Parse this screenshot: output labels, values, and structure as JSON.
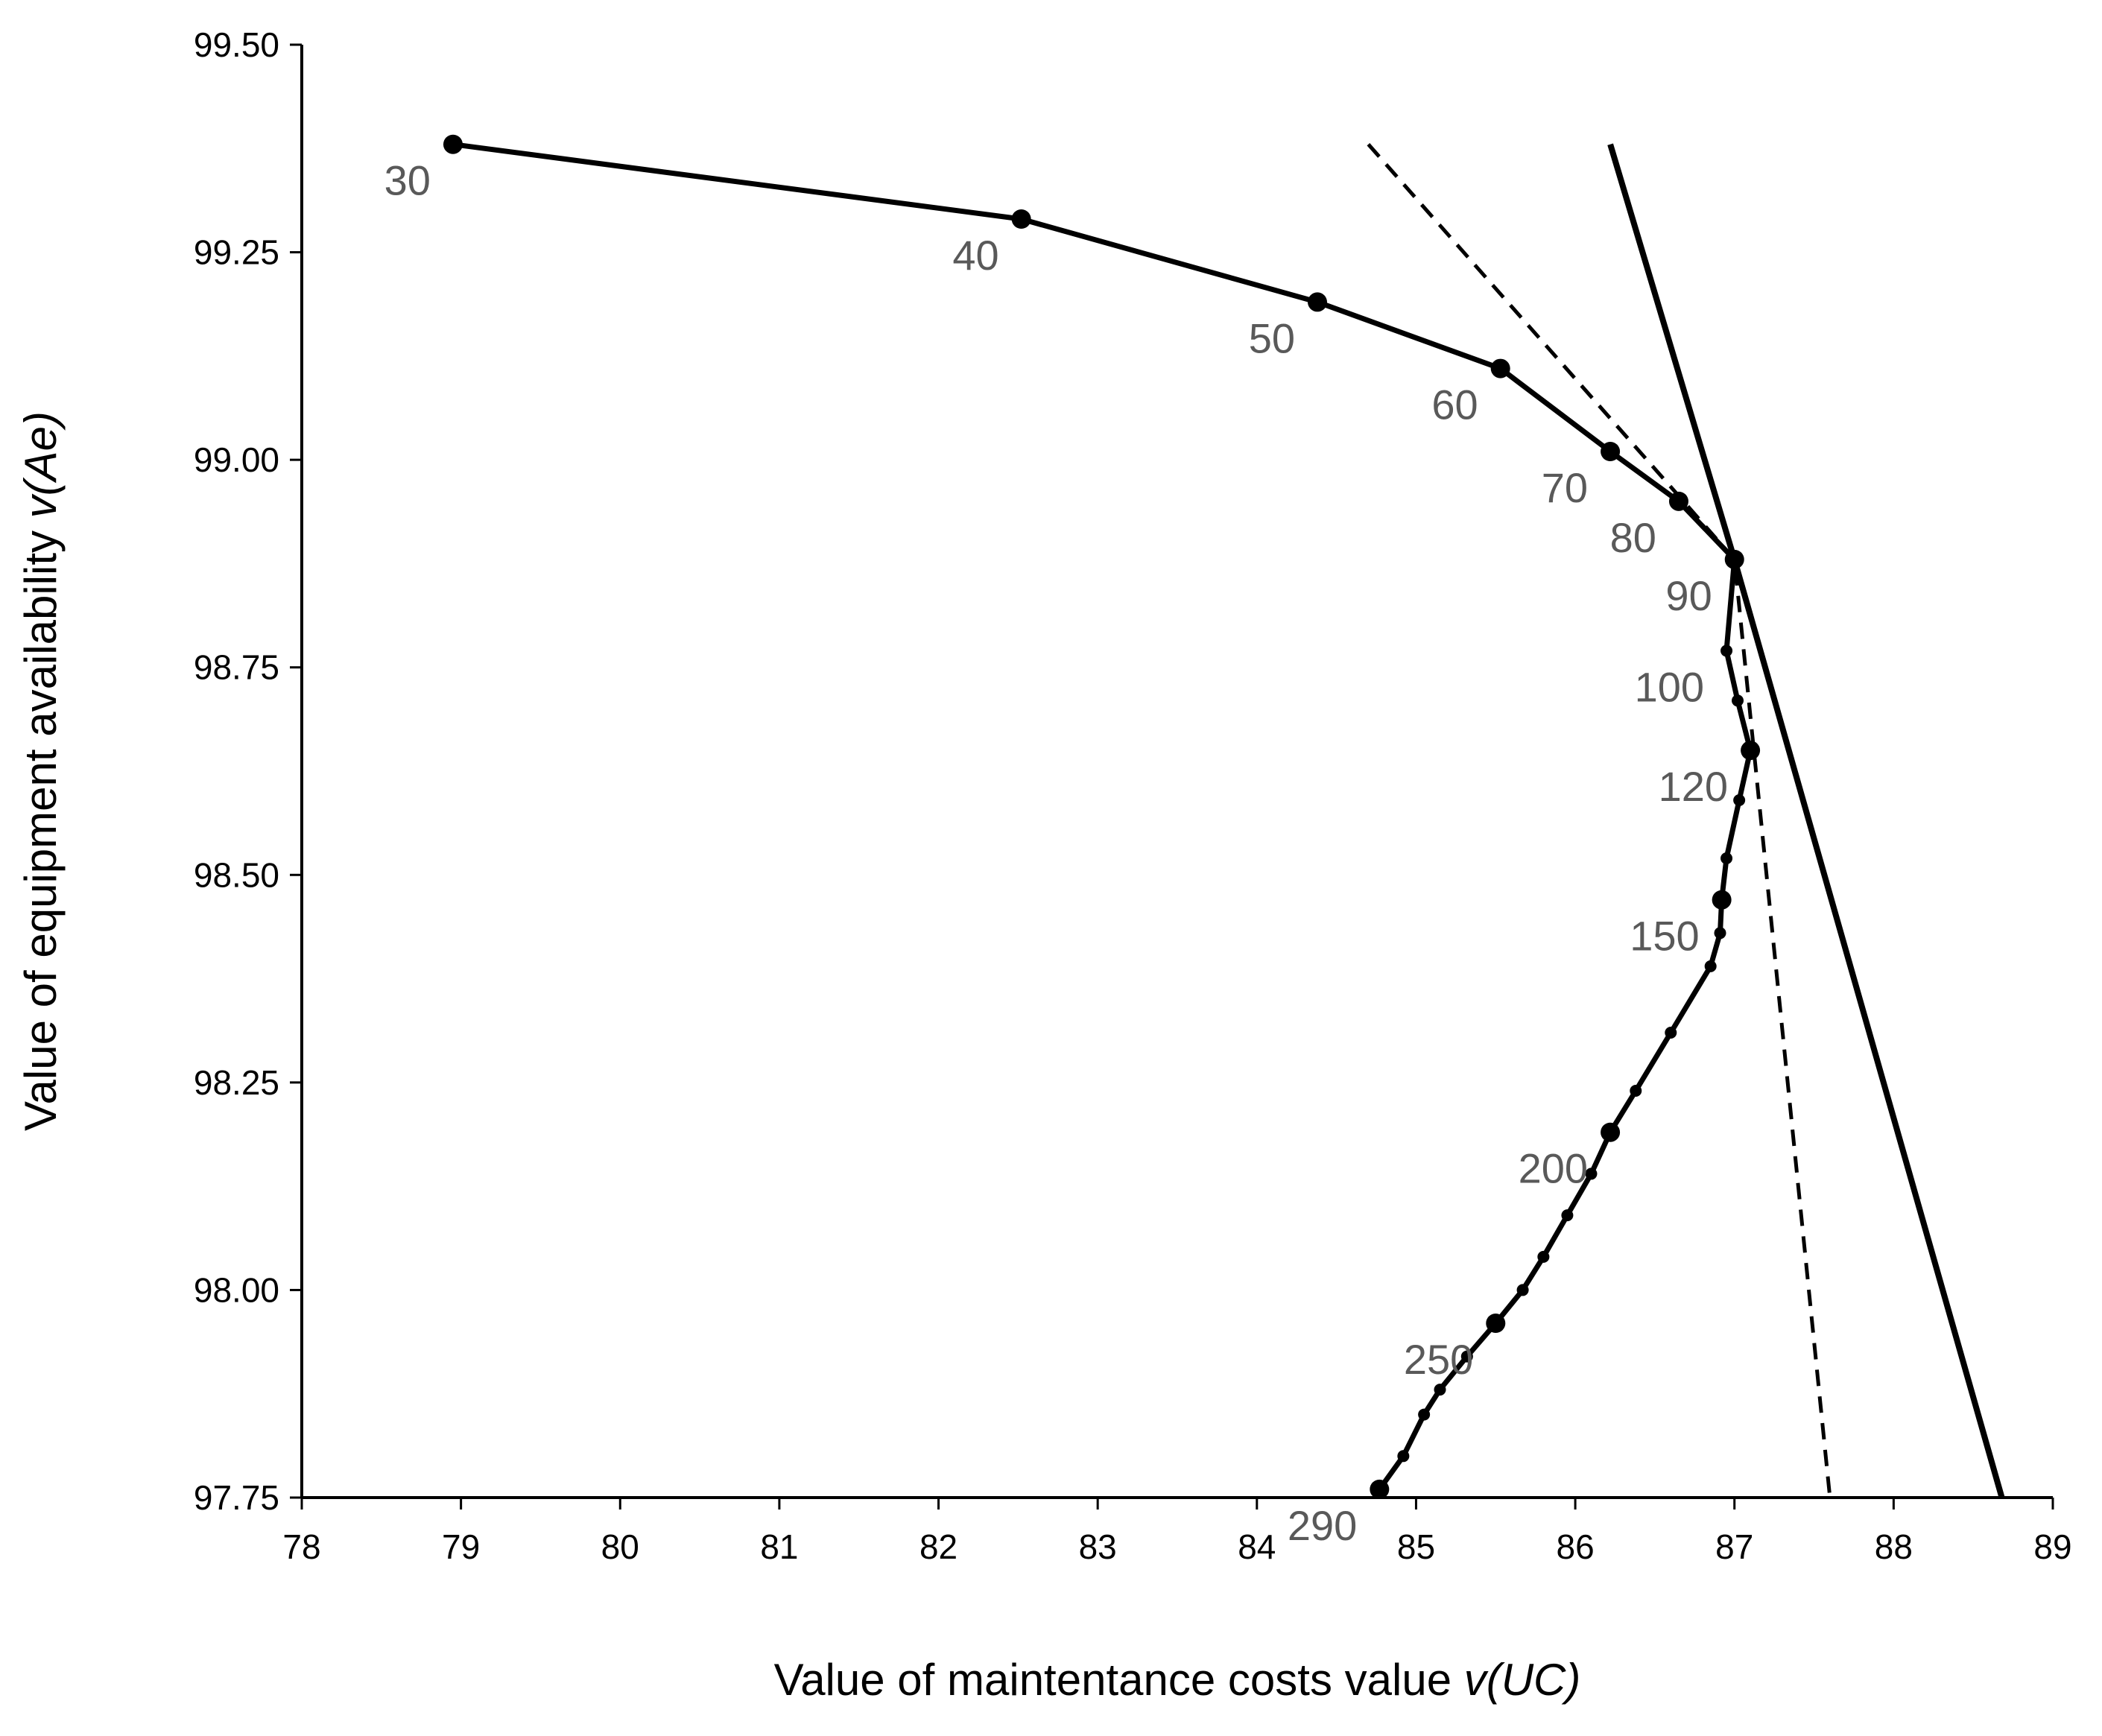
{
  "chart_data": {
    "type": "line",
    "xlabel": "Value of maintentance costs value ",
    "xlabel_var": "v(UC)",
    "ylabel": "Value of equipment availability ",
    "ylabel_var": "v(Ae)",
    "xlim": [
      78,
      89
    ],
    "ylim": [
      97.75,
      99.5
    ],
    "xticks": [
      78,
      79,
      80,
      81,
      82,
      83,
      84,
      85,
      86,
      87,
      88,
      89
    ],
    "yticks": [
      "97.75",
      "98.00",
      "98.25",
      "98.50",
      "98.75",
      "99.00",
      "99.25",
      "99.50"
    ],
    "grid": false,
    "series": [
      {
        "style": "solid-with-markers",
        "points": [
          [
            78.95,
            99.38
          ],
          [
            82.52,
            99.29
          ],
          [
            84.38,
            99.19
          ],
          [
            85.53,
            99.11
          ],
          [
            86.22,
            99.01
          ],
          [
            86.65,
            98.95
          ],
          [
            87.0,
            98.88
          ],
          [
            86.95,
            98.77
          ],
          [
            87.02,
            98.71
          ],
          [
            87.1,
            98.65
          ],
          [
            87.03,
            98.59
          ],
          [
            86.95,
            98.52
          ],
          [
            86.92,
            98.47
          ],
          [
            86.91,
            98.43
          ],
          [
            86.85,
            98.39
          ],
          [
            86.6,
            98.31
          ],
          [
            86.38,
            98.24
          ],
          [
            86.22,
            98.19
          ],
          [
            86.1,
            98.14
          ],
          [
            85.95,
            98.09
          ],
          [
            85.8,
            98.04
          ],
          [
            85.67,
            98.0
          ],
          [
            85.5,
            97.96
          ],
          [
            85.32,
            97.92
          ],
          [
            85.15,
            97.88
          ],
          [
            85.05,
            97.85
          ],
          [
            84.92,
            97.8
          ],
          [
            84.77,
            97.76
          ]
        ],
        "major_indices": [
          0,
          1,
          2,
          3,
          4,
          5,
          6,
          9,
          12,
          17,
          22,
          27
        ],
        "labels": [
          {
            "text": "30",
            "x": 78.95,
            "y": 99.38
          },
          {
            "text": "40",
            "x": 82.52,
            "y": 99.29
          },
          {
            "text": "50",
            "x": 84.38,
            "y": 99.19
          },
          {
            "text": "60",
            "x": 85.53,
            "y": 99.11
          },
          {
            "text": "70",
            "x": 86.22,
            "y": 99.01
          },
          {
            "text": "80",
            "x": 86.65,
            "y": 98.95
          },
          {
            "text": "90",
            "x": 87.0,
            "y": 98.88
          },
          {
            "text": "100",
            "x": 86.95,
            "y": 98.77
          },
          {
            "text": "120",
            "x": 87.1,
            "y": 98.65
          },
          {
            "text": "150",
            "x": 86.92,
            "y": 98.47
          },
          {
            "text": "200",
            "x": 86.22,
            "y": 98.19
          },
          {
            "text": "250",
            "x": 85.5,
            "y": 97.96
          },
          {
            "text": "290",
            "x": 84.77,
            "y": 97.76
          }
        ]
      },
      {
        "style": "dashed",
        "points": [
          [
            84.7,
            99.38
          ],
          [
            86.68,
            98.95
          ],
          [
            87.0,
            98.88
          ],
          [
            87.6,
            97.75
          ]
        ]
      },
      {
        "style": "solid-thick",
        "points": [
          [
            86.22,
            99.38
          ],
          [
            87.0,
            98.88
          ],
          [
            88.68,
            97.75
          ]
        ]
      }
    ]
  }
}
